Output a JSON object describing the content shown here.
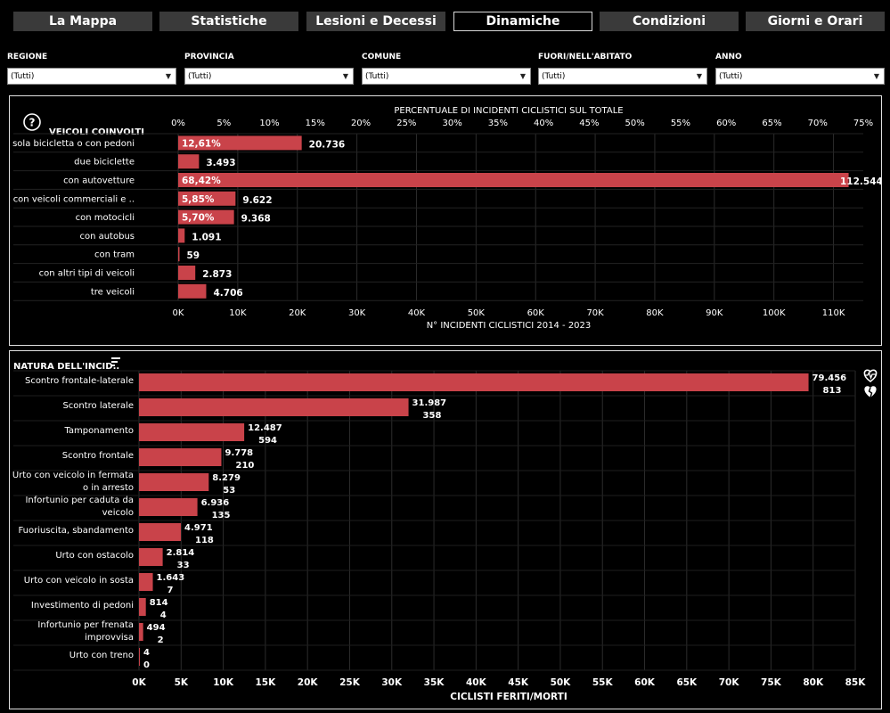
{
  "tabs": [
    {
      "label": "La Mappa",
      "active": false
    },
    {
      "label": "Statistiche",
      "active": false
    },
    {
      "label": "Lesioni e Decessi",
      "active": false
    },
    {
      "label": "Dinamiche",
      "active": true
    },
    {
      "label": "Condizioni",
      "active": false
    },
    {
      "label": "Giorni e Orari",
      "active": false
    }
  ],
  "filters": [
    {
      "label": "REGIONE",
      "value": "(Tutti)"
    },
    {
      "label": "PROVINCIA",
      "value": "(Tutti)"
    },
    {
      "label": "COMUNE",
      "value": "(Tutti)"
    },
    {
      "label": "FUORI/NELL'ABITATO",
      "value": "(Tutti)"
    },
    {
      "label": "ANNO",
      "value": "(Tutti)"
    }
  ],
  "colors": {
    "bar": "#c9434a",
    "background": "#000000",
    "text": "#ffffff",
    "grid": "#2c2c2c"
  },
  "chart_data": [
    {
      "type": "bar",
      "orientation": "horizontal",
      "title": "VEICOLI COINVOLTI",
      "help_icon": "question-circle-icon",
      "top_axis_label": "PERCENTUALE DI INCIDENTI CICLISTICI SUL TOTALE",
      "top_ticks": [
        "0%",
        "5%",
        "10%",
        "15%",
        "20%",
        "25%",
        "30%",
        "35%",
        "40%",
        "45%",
        "50%",
        "55%",
        "60%",
        "65%",
        "70%",
        "75%"
      ],
      "top_range": [
        0,
        75
      ],
      "xlabel": "N° INCIDENTI CICLISTICI 2014 - 2023",
      "xticks": [
        "0K",
        "10K",
        "20K",
        "30K",
        "40K",
        "50K",
        "60K",
        "70K",
        "80K",
        "90K",
        "100K",
        "110K"
      ],
      "xlim": [
        0,
        115000
      ],
      "categories": [
        "sola bicicletta o con pedoni",
        "due biciclette",
        "con autovetture",
        "con veicoli commerciali e ..",
        "con motocicli",
        "con autobus",
        "con tram",
        "con altri tipi di veicoli",
        "tre veicoli"
      ],
      "values": [
        20736,
        3493,
        112544,
        9622,
        9368,
        1091,
        59,
        2873,
        4706
      ],
      "value_labels": [
        "20.736",
        "3.493",
        "112.544",
        "9.622",
        "9.368",
        "1.091",
        "59",
        "2.873",
        "4.706"
      ],
      "pct_labels": [
        "12,61%",
        "",
        "68,42%",
        "5,85%",
        "5,70%",
        "",
        "",
        "",
        ""
      ]
    },
    {
      "type": "bar",
      "orientation": "horizontal",
      "title": "NATURA DELL'INCID..",
      "filter_icon": "sort-icon",
      "legend_icons": [
        "heart-pulse-icon",
        "broken-heart-icon"
      ],
      "xlabel": "CICLISTI FERITI/MORTI",
      "xticks": [
        "0K",
        "5K",
        "10K",
        "15K",
        "20K",
        "25K",
        "30K",
        "35K",
        "40K",
        "45K",
        "50K",
        "55K",
        "60K",
        "65K",
        "70K",
        "75K",
        "80K",
        "85K"
      ],
      "xlim": [
        0,
        85000
      ],
      "categories": [
        "Scontro frontale-laterale",
        "Scontro laterale",
        "Tamponamento",
        "Scontro frontale",
        "Urto con veicolo in fermata o in arresto",
        "Infortunio per caduta da veicolo",
        "Fuoriuscita, sbandamento",
        "Urto con ostacolo",
        "Urto con veicolo in sosta",
        "Investimento di pedoni",
        "Infortunio per frenata improvvisa",
        "Urto con treno"
      ],
      "category_lines": [
        [
          "Scontro frontale-laterale"
        ],
        [
          "Scontro laterale"
        ],
        [
          "Tamponamento"
        ],
        [
          "Scontro frontale"
        ],
        [
          "Urto con veicolo in fermata",
          "o in arresto"
        ],
        [
          "Infortunio per caduta da",
          "veicolo"
        ],
        [
          "Fuoriuscita, sbandamento"
        ],
        [
          "Urto con ostacolo"
        ],
        [
          "Urto con veicolo in sosta"
        ],
        [
          "Investimento di pedoni"
        ],
        [
          "Infortunio per frenata",
          "improvvisa"
        ],
        [
          "Urto con treno"
        ]
      ],
      "values": [
        79456,
        31987,
        12487,
        9778,
        8279,
        6936,
        4971,
        2814,
        1643,
        814,
        494,
        4
      ],
      "value_labels": [
        "79.456",
        "31.987",
        "12.487",
        "9.778",
        "8.279",
        "6.936",
        "4.971",
        "2.814",
        "1.643",
        "814",
        "494",
        "4"
      ],
      "deaths": [
        813,
        358,
        594,
        210,
        53,
        135,
        118,
        33,
        7,
        4,
        2,
        0
      ],
      "death_labels": [
        "813",
        "358",
        "594",
        "210",
        "53",
        "135",
        "118",
        "33",
        "7",
        "4",
        "2",
        "0"
      ]
    }
  ]
}
